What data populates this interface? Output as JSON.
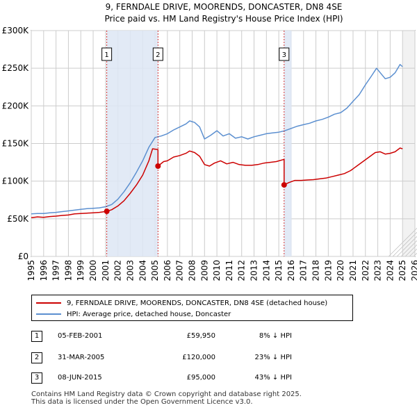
{
  "chart_data": {
    "type": "line",
    "title": "9, FERNDALE DRIVE, MOORENDS, DONCASTER, DN8 4SE",
    "subtitle": "Price paid vs. HM Land Registry's House Price Index (HPI)",
    "xlim": [
      1995,
      2026
    ],
    "ylim": [
      0,
      300000
    ],
    "x_ticks": [
      "1995",
      "1996",
      "1997",
      "1998",
      "1999",
      "2000",
      "2001",
      "2002",
      "2003",
      "2004",
      "2005",
      "2006",
      "2007",
      "2008",
      "2009",
      "2010",
      "2011",
      "2012",
      "2013",
      "2014",
      "2015",
      "2016",
      "2017",
      "2018",
      "2019",
      "2020",
      "2021",
      "2022",
      "2023",
      "2024",
      "2025",
      "2026"
    ],
    "y_ticks": [
      {
        "value": 0,
        "label": "£0"
      },
      {
        "value": 50000,
        "label": "£50K"
      },
      {
        "value": 100000,
        "label": "£100K"
      },
      {
        "value": 150000,
        "label": "£150K"
      },
      {
        "value": 200000,
        "label": "£200K"
      },
      {
        "value": 250000,
        "label": "£250K"
      },
      {
        "value": 300000,
        "label": "£300K"
      }
    ],
    "series": [
      {
        "name": "9, FERNDALE DRIVE, MOORENDS, DONCASTER, DN8 4SE (detached house)",
        "color": "#cc0000",
        "points": [
          [
            1995,
            51500
          ],
          [
            1995.5,
            52500
          ],
          [
            1996,
            52000
          ],
          [
            1996.5,
            53000
          ],
          [
            1997,
            53500
          ],
          [
            1997.5,
            54500
          ],
          [
            1998,
            55000
          ],
          [
            1998.5,
            56500
          ],
          [
            1999,
            57000
          ],
          [
            1999.5,
            57500
          ],
          [
            2000,
            58000
          ],
          [
            2000.5,
            58500
          ],
          [
            2001.1,
            59950
          ],
          [
            2001.5,
            62000
          ],
          [
            2002,
            67000
          ],
          [
            2002.5,
            74000
          ],
          [
            2003,
            84000
          ],
          [
            2003.5,
            95000
          ],
          [
            2004,
            108000
          ],
          [
            2004.5,
            127000
          ],
          [
            2004.8,
            143000
          ],
          [
            2005.24,
            142000
          ],
          [
            2005.24,
            120000
          ],
          [
            2005.7,
            126000
          ],
          [
            2006,
            127000
          ],
          [
            2006.5,
            132000
          ],
          [
            2007,
            134000
          ],
          [
            2007.5,
            137000
          ],
          [
            2007.8,
            140000
          ],
          [
            2008.2,
            138000
          ],
          [
            2008.6,
            133000
          ],
          [
            2009,
            122000
          ],
          [
            2009.4,
            120000
          ],
          [
            2009.8,
            124000
          ],
          [
            2010.3,
            127000
          ],
          [
            2010.8,
            123000
          ],
          [
            2011.3,
            125000
          ],
          [
            2011.8,
            122000
          ],
          [
            2012.3,
            121000
          ],
          [
            2012.8,
            121000
          ],
          [
            2013.3,
            122000
          ],
          [
            2013.8,
            124000
          ],
          [
            2014.3,
            125000
          ],
          [
            2014.8,
            126000
          ],
          [
            2015.43,
            129000
          ],
          [
            2015.43,
            95000
          ],
          [
            2015.8,
            98000
          ],
          [
            2016.3,
            101000
          ],
          [
            2016.8,
            101000
          ],
          [
            2017.3,
            101500
          ],
          [
            2017.8,
            102000
          ],
          [
            2018.3,
            103000
          ],
          [
            2018.8,
            104000
          ],
          [
            2019.3,
            106000
          ],
          [
            2019.8,
            108000
          ],
          [
            2020.3,
            110000
          ],
          [
            2020.8,
            114000
          ],
          [
            2021.3,
            120000
          ],
          [
            2021.8,
            126000
          ],
          [
            2022.3,
            132000
          ],
          [
            2022.8,
            138000
          ],
          [
            2023.2,
            139000
          ],
          [
            2023.6,
            136000
          ],
          [
            2024,
            137000
          ],
          [
            2024.4,
            139000
          ],
          [
            2024.8,
            144000
          ],
          [
            2025,
            143000
          ]
        ]
      },
      {
        "name": "HPI: Average price, detached house, Doncaster",
        "color": "#5b8fd0",
        "points": [
          [
            1995,
            56500
          ],
          [
            1995.5,
            57000
          ],
          [
            1996,
            57000
          ],
          [
            1996.5,
            58000
          ],
          [
            1997,
            58500
          ],
          [
            1997.5,
            59500
          ],
          [
            1998,
            60500
          ],
          [
            1998.5,
            61500
          ],
          [
            1999,
            62500
          ],
          [
            1999.5,
            63500
          ],
          [
            2000,
            64000
          ],
          [
            2000.5,
            64500
          ],
          [
            2001,
            66000
          ],
          [
            2001.5,
            69000
          ],
          [
            2002,
            76000
          ],
          [
            2002.5,
            86000
          ],
          [
            2003,
            98000
          ],
          [
            2003.5,
            112000
          ],
          [
            2004,
            127000
          ],
          [
            2004.5,
            145000
          ],
          [
            2005,
            158000
          ],
          [
            2005.5,
            160000
          ],
          [
            2006,
            163000
          ],
          [
            2006.5,
            168000
          ],
          [
            2007,
            172000
          ],
          [
            2007.5,
            176000
          ],
          [
            2007.8,
            180000
          ],
          [
            2008.2,
            178000
          ],
          [
            2008.6,
            172000
          ],
          [
            2009,
            156000
          ],
          [
            2009.5,
            161000
          ],
          [
            2010,
            167000
          ],
          [
            2010.5,
            160000
          ],
          [
            2011,
            163000
          ],
          [
            2011.5,
            157000
          ],
          [
            2012,
            159000
          ],
          [
            2012.5,
            156000
          ],
          [
            2013,
            159000
          ],
          [
            2013.5,
            161000
          ],
          [
            2014,
            163000
          ],
          [
            2014.5,
            164000
          ],
          [
            2015,
            165000
          ],
          [
            2015.5,
            167000
          ],
          [
            2016,
            170000
          ],
          [
            2016.5,
            173000
          ],
          [
            2017,
            175000
          ],
          [
            2017.5,
            177000
          ],
          [
            2018,
            180000
          ],
          [
            2018.5,
            182000
          ],
          [
            2019,
            185000
          ],
          [
            2019.5,
            189000
          ],
          [
            2020,
            191000
          ],
          [
            2020.5,
            197000
          ],
          [
            2021,
            206000
          ],
          [
            2021.5,
            215000
          ],
          [
            2022,
            228000
          ],
          [
            2022.5,
            240000
          ],
          [
            2022.9,
            250000
          ],
          [
            2023.3,
            242000
          ],
          [
            2023.6,
            236000
          ],
          [
            2024,
            238000
          ],
          [
            2024.4,
            244000
          ],
          [
            2024.8,
            255000
          ],
          [
            2025,
            252000
          ]
        ]
      }
    ],
    "sales": [
      {
        "marker": "1",
        "x": 2001.1,
        "price": 59950
      },
      {
        "marker": "2",
        "x": 2005.24,
        "price": 120000
      },
      {
        "marker": "3",
        "x": 2015.43,
        "price": 95000
      }
    ],
    "sale_marker_color": "#cc0000",
    "highlight_color": "#dde6f5",
    "grid_color": "#cccccc",
    "future_from": 2025.0
  },
  "legend": {
    "items": [
      {
        "label": "9, FERNDALE DRIVE, MOORENDS, DONCASTER, DN8 4SE (detached house)",
        "color": "#cc0000"
      },
      {
        "label": "HPI: Average price, detached house, Doncaster",
        "color": "#5b8fd0"
      }
    ]
  },
  "transactions": [
    {
      "num": "1",
      "date": "05-FEB-2001",
      "price": "£59,950",
      "hpi": "8% ↓ HPI"
    },
    {
      "num": "2",
      "date": "31-MAR-2005",
      "price": "£120,000",
      "hpi": "23% ↓ HPI"
    },
    {
      "num": "3",
      "date": "08-JUN-2015",
      "price": "£95,000",
      "hpi": "43% ↓ HPI"
    }
  ],
  "footer": {
    "line1": "Contains HM Land Registry data © Crown copyright and database right 2025.",
    "line2": "This data is licensed under the Open Government Licence v3.0."
  }
}
